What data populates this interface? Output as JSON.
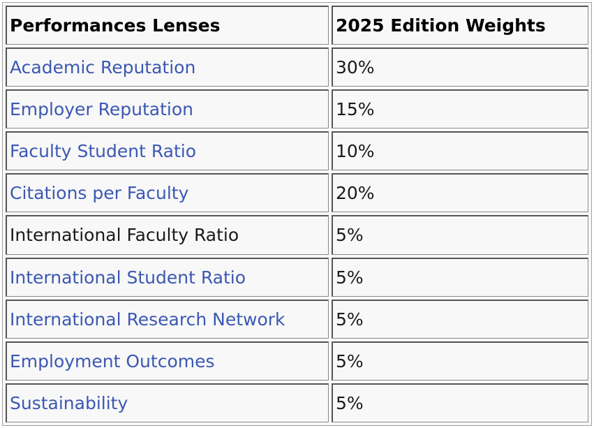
{
  "table": {
    "headers": [
      "Performances Lenses",
      "2025 Edition Weights"
    ],
    "rows": [
      {
        "lens": "Academic Reputation",
        "weight": "30%",
        "linked": true
      },
      {
        "lens": "Employer Reputation",
        "weight": "15%",
        "linked": true
      },
      {
        "lens": "Faculty Student Ratio",
        "weight": "10%",
        "linked": true
      },
      {
        "lens": "Citations per Faculty",
        "weight": "20%",
        "linked": true
      },
      {
        "lens": "International Faculty Ratio",
        "weight": "5%",
        "linked": false
      },
      {
        "lens": "International Student Ratio",
        "weight": "5%",
        "linked": true
      },
      {
        "lens": "International Research Network",
        "weight": "5%",
        "linked": true
      },
      {
        "lens": "Employment Outcomes",
        "weight": "5%",
        "linked": true
      },
      {
        "lens": "Sustainability",
        "weight": "5%",
        "linked": true
      }
    ]
  },
  "colors": {
    "link": "#3b58b3",
    "text": "#1a1a1a",
    "cell_background": "#f8f8f8",
    "border": "#555555"
  }
}
